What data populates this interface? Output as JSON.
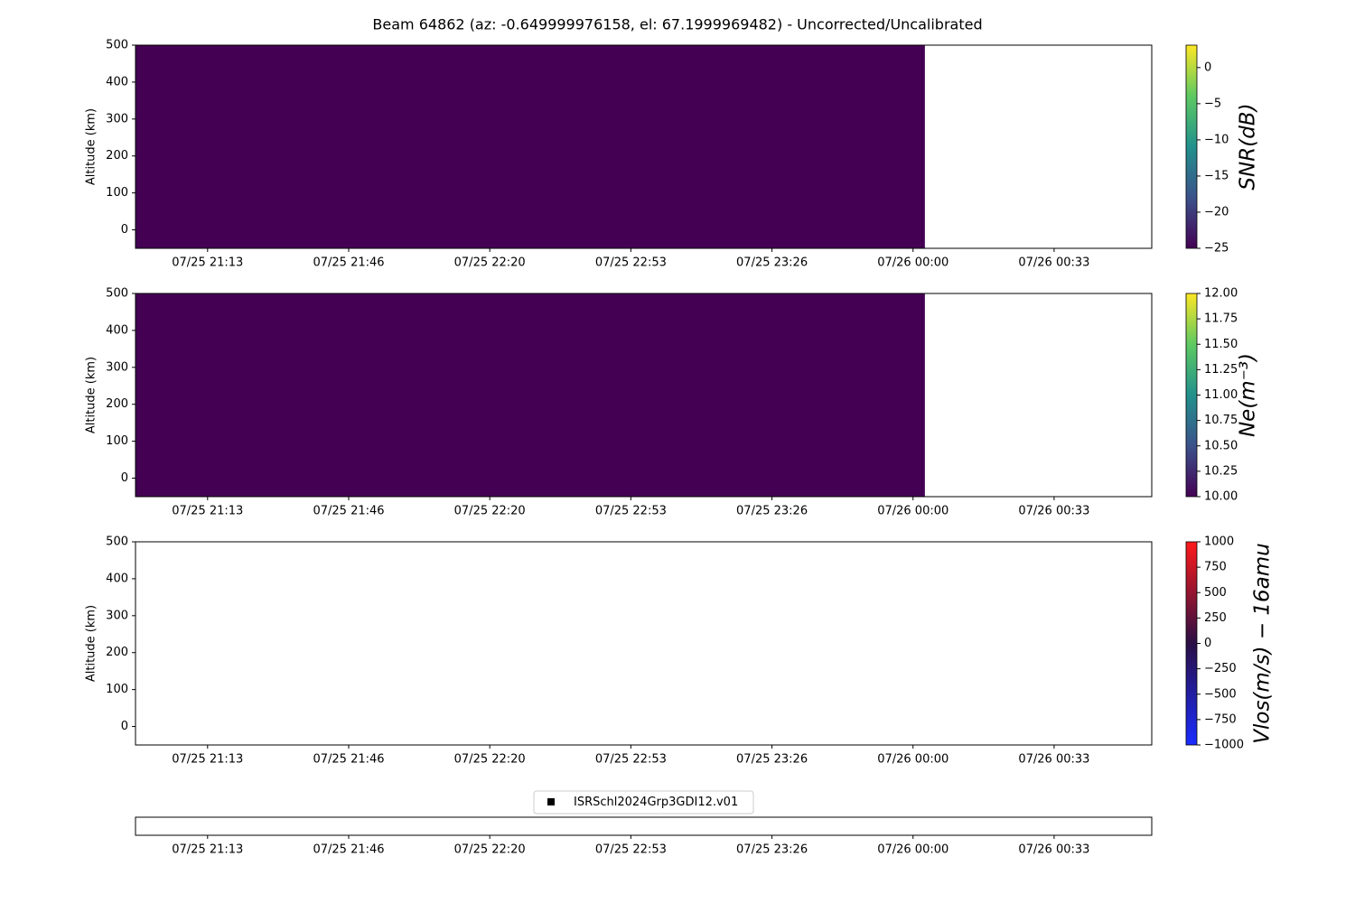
{
  "chart_data": [
    {
      "type": "heatmap",
      "title": "Beam 64862 (az: -0.649999976158, el: 67.1999969482) - Uncorrected/Uncalibrated",
      "ylabel": "Altitude (km)",
      "xlim": [
        1256.3,
        1496.4
      ],
      "xticks": [
        {
          "value": 1273.33,
          "label": "07/25 21:13"
        },
        {
          "value": 1306.67,
          "label": "07/25 21:46"
        },
        {
          "value": 1340,
          "label": "07/25 22:20"
        },
        {
          "value": 1373.33,
          "label": "07/25 22:53"
        },
        {
          "value": 1406.67,
          "label": "07/25 23:26"
        },
        {
          "value": 1440,
          "label": "07/26 00:00"
        },
        {
          "value": 1473.33,
          "label": "07/26 00:33"
        }
      ],
      "ylim": [
        -50,
        500
      ],
      "yticks": [
        0,
        100,
        200,
        300,
        400,
        500
      ],
      "cells": [
        {
          "x": [
            1256.3,
            1442.8
          ],
          "y": [
            -50,
            500
          ],
          "value": -25
        }
      ],
      "colorbar": {
        "label": "SNR(dB)",
        "lim": [
          -25,
          3.1
        ],
        "colors": [
          "#440154",
          "#3b528b",
          "#21918c",
          "#5ec962",
          "#fde725"
        ],
        "ticks": [
          {
            "value": -25,
            "label": "−25"
          },
          {
            "value": -20,
            "label": "−20"
          },
          {
            "value": -15,
            "label": "−15"
          },
          {
            "value": -10,
            "label": "−10"
          },
          {
            "value": -5,
            "label": "−5"
          },
          0
        ]
      }
    },
    {
      "type": "heatmap",
      "ylabel": "Altitude (km)",
      "xlim": [
        1256.3,
        1496.4
      ],
      "xticks": [
        {
          "value": 1273.33,
          "label": "07/25 21:13"
        },
        {
          "value": 1306.67,
          "label": "07/25 21:46"
        },
        {
          "value": 1340,
          "label": "07/25 22:20"
        },
        {
          "value": 1373.33,
          "label": "07/25 22:53"
        },
        {
          "value": 1406.67,
          "label": "07/25 23:26"
        },
        {
          "value": 1440,
          "label": "07/26 00:00"
        },
        {
          "value": 1473.33,
          "label": "07/26 00:33"
        }
      ],
      "ylim": [
        -50,
        500
      ],
      "yticks": [
        0,
        100,
        200,
        300,
        400,
        500
      ],
      "cells": [
        {
          "x": [
            1256.3,
            1442.8
          ],
          "y": [
            -50,
            500
          ],
          "value": 10
        }
      ],
      "colorbar": {
        "label": "Ne(m⁻³)",
        "lim": [
          10,
          12
        ],
        "colors": [
          "#440154",
          "#3b528b",
          "#21918c",
          "#5ec962",
          "#fde725"
        ],
        "ticks": [
          {
            "value": 10,
            "label": "10.00"
          },
          10.25,
          {
            "value": 10.5,
            "label": "10.50"
          },
          10.75,
          {
            "value": 11,
            "label": "11.00"
          },
          11.25,
          {
            "value": 11.5,
            "label": "11.50"
          },
          11.75,
          {
            "value": 12,
            "label": "12.00"
          }
        ]
      }
    },
    {
      "type": "heatmap",
      "ylabel": "Altitude (km)",
      "xlim": [
        1256.3,
        1496.4
      ],
      "xticks": [
        {
          "value": 1273.33,
          "label": "07/25 21:13"
        },
        {
          "value": 1306.67,
          "label": "07/25 21:46"
        },
        {
          "value": 1340,
          "label": "07/25 22:20"
        },
        {
          "value": 1373.33,
          "label": "07/25 22:53"
        },
        {
          "value": 1406.67,
          "label": "07/25 23:26"
        },
        {
          "value": 1440,
          "label": "07/26 00:00"
        },
        {
          "value": 1473.33,
          "label": "07/26 00:33"
        }
      ],
      "ylim": [
        -50,
        500
      ],
      "yticks": [
        0,
        100,
        200,
        300,
        400,
        500
      ],
      "cells": [],
      "colorbar": {
        "label": "Vlos(m/s) − 16amu",
        "lim": [
          -1000,
          1000
        ],
        "colors": [
          "#1a2cff",
          "#2a0f45",
          "#ff1a1a"
        ],
        "ticks": [
          {
            "value": -1000,
            "label": "−1000"
          },
          {
            "value": -750,
            "label": "−750"
          },
          {
            "value": -500,
            "label": "−500"
          },
          {
            "value": -250,
            "label": "−250"
          },
          0,
          250,
          500,
          750,
          1000
        ]
      }
    },
    {
      "type": "scatter",
      "xlim": [
        1256.3,
        1496.4
      ],
      "xticks": [
        {
          "value": 1273.33,
          "label": "07/25 21:13"
        },
        {
          "value": 1306.67,
          "label": "07/25 21:46"
        },
        {
          "value": 1340,
          "label": "07/25 22:20"
        },
        {
          "value": 1373.33,
          "label": "07/25 22:53"
        },
        {
          "value": 1406.67,
          "label": "07/25 23:26"
        },
        {
          "value": 1440,
          "label": "07/26 00:00"
        },
        {
          "value": 1473.33,
          "label": "07/26 00:33"
        }
      ],
      "series": [
        {
          "name": "ISRSchl2024Grp3GDI12.v01",
          "color": "#000000"
        }
      ],
      "legend": "upper-center"
    }
  ]
}
